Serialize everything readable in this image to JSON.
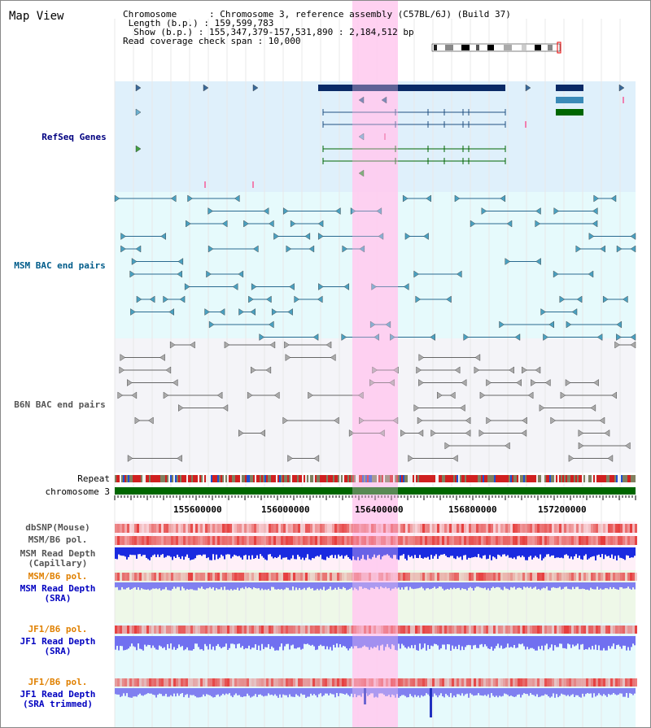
{
  "title": "Map View",
  "header": {
    "chromosome_line": "Chromosome      : Chromosome 3, reference assembly (C57BL/6J) (Build 37)",
    "length_line": " Length (b.p.) : 159,599,783",
    "show_line": "  Show (b.p.) : 155,347,379-157,531,890 : 2,184,512 bp",
    "coverage_line": "Read coverage check span : 10,000"
  },
  "tracks": [
    {
      "label": "RefSeq Genes",
      "color": "#000080"
    },
    {
      "label": "MSM BAC end pairs",
      "color": "#005c8a"
    },
    {
      "label": "B6N BAC end pairs",
      "color": "#555555"
    }
  ],
  "row_labels": {
    "repeat": "Repeat",
    "chromosome": "chromosome 3"
  },
  "ruler": {
    "ticks": [
      "155600000",
      "156000000",
      "156400000",
      "156800000",
      "157200000"
    ]
  },
  "variant_tracks": [
    {
      "label": "dbSNP(Mouse)",
      "color": "#555555"
    },
    {
      "label": "MSM/B6 pol.",
      "color": "#555555"
    },
    {
      "label": "MSM Read Depth",
      "label2": "(Capillary)",
      "color": "#555555"
    },
    {
      "label": "MSM/B6 pol.",
      "color": "#e08000"
    },
    {
      "label": "MSM Read Depth",
      "label2": "(SRA)",
      "color": "#0000c0"
    },
    {
      "label": "JF1/B6 pol.",
      "color": "#e08000"
    },
    {
      "label": "JF1 Read Depth",
      "label2": "(SRA)",
      "color": "#0000c0"
    },
    {
      "label": "JF1/B6 pol.",
      "color": "#e08000"
    },
    {
      "label": "JF1 Read Depth",
      "label2": "(SRA trimmed)",
      "color": "#0000c0"
    }
  ],
  "colors": {
    "highlight": "#ffccf0",
    "refseq_bg": "#dff0fb",
    "msm_bg": "#e6fafc",
    "navy": "#0a2a66",
    "green": "#006600"
  }
}
